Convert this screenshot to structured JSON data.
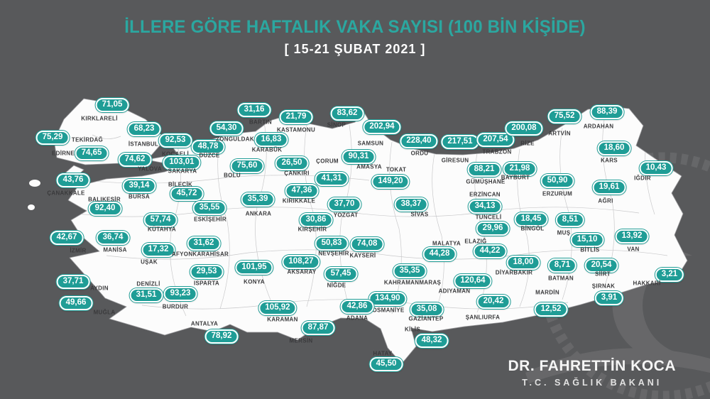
{
  "title": "İLLERE GÖRE HAFTALIK VAKA SAYISI (100 BİN KİŞİDE)",
  "subtitle": "[ 15-21 ŞUBAT 2021 ]",
  "signature": {
    "name": "DR. FAHRETTİN KOCA",
    "title": "T.C. SAĞLIK BAKANI"
  },
  "colors": {
    "background": "#58595b",
    "land": "#fcfcfc",
    "badge_fill": "#1f9d96",
    "badge_border": "#ffffff",
    "title_text": "#2ba7a0",
    "subtitle_text": "#ffffff",
    "province_text": "#3a3a3c"
  },
  "icons": [
    "crescent-icon",
    "star-icon",
    "rope-ring-icon"
  ],
  "chart_data": {
    "type": "map",
    "title": "İLLERE GÖRE HAFTALIK VAKA SAYISI (100 BİN KİŞİDE)",
    "subtitle": "[ 15-21 ŞUBAT 2021 ]",
    "provinces": [
      {
        "name": "KIRKLARELİ",
        "value": "71,05",
        "bx": 158,
        "by": 148,
        "nx": 140,
        "ny": 167
      },
      {
        "name": "EDİRNE",
        "value": "75,29",
        "bx": 74,
        "by": 194,
        "nx": 89,
        "ny": 216
      },
      {
        "name": "TEKİRDAĞ",
        "value": "74,65",
        "bx": 129,
        "by": 216,
        "nx": 123,
        "ny": 197
      },
      {
        "name": "İSTANBUL",
        "value": "68,23",
        "bx": 203,
        "by": 182,
        "nx": 202,
        "ny": 203
      },
      {
        "name": "KOCAELİ",
        "value": "92,53",
        "bx": 247,
        "by": 198,
        "nx": 247,
        "ny": 217
      },
      {
        "name": "YALOVA",
        "value": "74,62",
        "bx": 190,
        "by": 225,
        "nx": 211,
        "ny": 238
      },
      {
        "name": "SAKARYA",
        "value": "103,01",
        "bx": 256,
        "by": 229,
        "nx": 257,
        "ny": 241
      },
      {
        "name": "DÜZCE",
        "value": "48,78",
        "bx": 293,
        "by": 207,
        "nx": 295,
        "ny": 219
      },
      {
        "name": "ZONGULDAK",
        "value": "54,30",
        "bx": 319,
        "by": 181,
        "nx": 331,
        "ny": 196
      },
      {
        "name": "BARTIN",
        "value": "31,16",
        "bx": 358,
        "by": 155,
        "nx": 367,
        "ny": 172
      },
      {
        "name": "KASTAMONU",
        "value": "21,79",
        "bx": 417,
        "by": 165,
        "nx": 417,
        "ny": 183
      },
      {
        "name": "SİNOP",
        "value": "83,62",
        "bx": 489,
        "by": 160,
        "nx": 474,
        "ny": 176
      },
      {
        "name": "KARABÜK",
        "value": "16,83",
        "bx": 382,
        "by": 197,
        "nx": 376,
        "ny": 211
      },
      {
        "name": "BOLU",
        "value": "75,60",
        "bx": 348,
        "by": 234,
        "nx": 327,
        "ny": 247
      },
      {
        "name": "ÇANKIRI",
        "value": "26,50",
        "bx": 411,
        "by": 230,
        "nx": 418,
        "ny": 244
      },
      {
        "name": "ÇORUM",
        "value": "41,31",
        "bx": 467,
        "by": 252,
        "nx": 461,
        "ny": 227
      },
      {
        "name": "SAMSUN",
        "value": "202,94",
        "bx": 538,
        "by": 179,
        "nx": 522,
        "ny": 202
      },
      {
        "name": "AMASYA",
        "value": "90,31",
        "bx": 505,
        "by": 221,
        "nx": 520,
        "ny": 235
      },
      {
        "name": "TOKAT",
        "value": "149,20",
        "bx": 550,
        "by": 256,
        "nx": 558,
        "ny": 239
      },
      {
        "name": "ORDU",
        "value": "228,40",
        "bx": 590,
        "by": 199,
        "nx": 591,
        "ny": 216
      },
      {
        "name": "GİRESUN",
        "value": "217,51",
        "bx": 648,
        "by": 200,
        "nx": 641,
        "ny": 226
      },
      {
        "name": "TRABZON",
        "value": "207,54",
        "bx": 698,
        "by": 197,
        "nx": 700,
        "ny": 214
      },
      {
        "name": "RİZE",
        "value": "200,08",
        "bx": 738,
        "by": 181,
        "nx": 743,
        "ny": 202
      },
      {
        "name": "ARTVİN",
        "value": "75,52",
        "bx": 795,
        "by": 164,
        "nx": 788,
        "ny": 188
      },
      {
        "name": "ARDAHAN",
        "value": "88,39",
        "bx": 855,
        "by": 158,
        "nx": 843,
        "ny": 178
      },
      {
        "name": "KARS",
        "value": "18,60",
        "bx": 865,
        "by": 209,
        "nx": 858,
        "ny": 226
      },
      {
        "name": "IĞDIR",
        "value": "10,43",
        "bx": 924,
        "by": 237,
        "nx": 905,
        "ny": 251
      },
      {
        "name": "AĞRI",
        "value": "19,61",
        "bx": 858,
        "by": 264,
        "nx": 853,
        "ny": 283
      },
      {
        "name": "ERZURUM",
        "value": "50,90",
        "bx": 785,
        "by": 255,
        "nx": 785,
        "ny": 273
      },
      {
        "name": "BAYBURT",
        "value": "21,98",
        "bx": 732,
        "by": 238,
        "nx": 726,
        "ny": 250
      },
      {
        "name": "GÜMÜŞHANE",
        "value": "88,21",
        "bx": 682,
        "by": 239,
        "nx": 684,
        "ny": 256
      },
      {
        "name": "ERZİNCAN",
        "value": "34,13",
        "bx": 683,
        "by": 291,
        "nx": 683,
        "ny": 274
      },
      {
        "name": "TUNCELİ",
        "value": "29,96",
        "bx": 694,
        "by": 322,
        "nx": 688,
        "ny": 306
      },
      {
        "name": "BİNGÖL",
        "value": "18,45",
        "bx": 748,
        "by": 309,
        "nx": 750,
        "ny": 322
      },
      {
        "name": "MUŞ",
        "value": "8,51",
        "bx": 803,
        "by": 310,
        "nx": 794,
        "ny": 328
      },
      {
        "name": "BİTLİS",
        "value": "15,10",
        "bx": 827,
        "by": 338,
        "nx": 831,
        "ny": 352
      },
      {
        "name": "VAN",
        "value": "13,92",
        "bx": 890,
        "by": 333,
        "nx": 892,
        "ny": 351
      },
      {
        "name": "HAKKARİ",
        "value": "3,21",
        "bx": 943,
        "by": 387,
        "nx": 911,
        "ny": 399
      },
      {
        "name": "ŞIRNAK",
        "value": "3,91",
        "bx": 858,
        "by": 420,
        "nx": 850,
        "ny": 403
      },
      {
        "name": "SİİRT",
        "value": "20,54",
        "bx": 847,
        "by": 374,
        "nx": 849,
        "ny": 386
      },
      {
        "name": "BATMAN",
        "value": "8,71",
        "bx": 792,
        "by": 374,
        "nx": 790,
        "ny": 392
      },
      {
        "name": "MARDİN",
        "value": "12,52",
        "bx": 776,
        "by": 436,
        "nx": 771,
        "ny": 412
      },
      {
        "name": "DİYARBAKIR",
        "value": "18,00",
        "bx": 737,
        "by": 370,
        "nx": 724,
        "ny": 384
      },
      {
        "name": "ELAZIĞ",
        "value": "44,22",
        "bx": 690,
        "by": 354,
        "nx": 670,
        "ny": 340
      },
      {
        "name": "MALATYA",
        "value": "44,28",
        "bx": 619,
        "by": 358,
        "nx": 629,
        "ny": 343
      },
      {
        "name": "ADIYAMAN",
        "value": "120,64",
        "bx": 666,
        "by": 396,
        "nx": 640,
        "ny": 410
      },
      {
        "name": "ŞANLIURFA",
        "value": "20,42",
        "bx": 695,
        "by": 425,
        "nx": 680,
        "ny": 447
      },
      {
        "name": "GAZİANTEP",
        "value": "35,08",
        "bx": 601,
        "by": 436,
        "nx": 600,
        "ny": 449
      },
      {
        "name": "KİLİS",
        "value": "48,32",
        "bx": 608,
        "by": 480,
        "nx": 581,
        "ny": 464
      },
      {
        "name": "OSMANİYE",
        "value": "134,90",
        "bx": 546,
        "by": 421,
        "nx": 547,
        "ny": 437
      },
      {
        "name": "HATAY",
        "value": "45,50",
        "bx": 544,
        "by": 513,
        "nx": 539,
        "ny": 498
      },
      {
        "name": "KAHRAMANMARAŞ",
        "value": "35,35",
        "bx": 577,
        "by": 382,
        "nx": 581,
        "ny": 398
      },
      {
        "name": "ADANA",
        "value": "42,86",
        "bx": 503,
        "by": 432,
        "nx": 503,
        "ny": 448
      },
      {
        "name": "MERSİN",
        "value": "87,87",
        "bx": 448,
        "by": 462,
        "nx": 424,
        "ny": 480
      },
      {
        "name": "NİĞDE",
        "value": "57,45",
        "bx": 480,
        "by": 386,
        "nx": 474,
        "ny": 402
      },
      {
        "name": "AKSARAY",
        "value": "108,27",
        "bx": 424,
        "by": 369,
        "nx": 425,
        "ny": 383
      },
      {
        "name": "NEVŞEHİR",
        "value": "50,83",
        "bx": 467,
        "by": 343,
        "nx": 470,
        "ny": 357
      },
      {
        "name": "KAYSERİ",
        "value": "74,08",
        "bx": 517,
        "by": 344,
        "nx": 511,
        "ny": 360
      },
      {
        "name": "KIRŞEHİR",
        "value": "30,86",
        "bx": 445,
        "by": 310,
        "nx": 440,
        "ny": 323
      },
      {
        "name": "YOZGAT",
        "value": "37,70",
        "bx": 485,
        "by": 288,
        "nx": 487,
        "ny": 303
      },
      {
        "name": "KIRIKKALE",
        "value": "47,36",
        "bx": 425,
        "by": 269,
        "nx": 421,
        "ny": 283
      },
      {
        "name": "ANKARA",
        "value": "35,39",
        "bx": 363,
        "by": 281,
        "nx": 364,
        "ny": 301
      },
      {
        "name": "ÇANAKKALE",
        "value": "43,76",
        "bx": 103,
        "by": 254,
        "nx": 93,
        "ny": 272
      },
      {
        "name": "BALIKESİR",
        "value": "92,40",
        "bx": 148,
        "by": 294,
        "nx": 147,
        "ny": 281
      },
      {
        "name": "BURSA",
        "value": "39,14",
        "bx": 196,
        "by": 262,
        "nx": 196,
        "ny": 277
      },
      {
        "name": "BİLECİK",
        "value": "45,72",
        "bx": 263,
        "by": 273,
        "nx": 254,
        "ny": 260
      },
      {
        "name": "ESKİŞEHİR",
        "value": "35,55",
        "bx": 295,
        "by": 293,
        "nx": 296,
        "ny": 309
      },
      {
        "name": "KÜTAHYA",
        "value": "57,74",
        "bx": 226,
        "by": 310,
        "nx": 228,
        "ny": 323
      },
      {
        "name": "UŞAK",
        "value": "17,32",
        "bx": 223,
        "by": 352,
        "nx": 210,
        "ny": 369
      },
      {
        "name": "AFYONKARAHİSAR",
        "value": "31,62",
        "bx": 287,
        "by": 343,
        "nx": 282,
        "ny": 358
      },
      {
        "name": "MANİSA",
        "value": "36,74",
        "bx": 159,
        "by": 335,
        "nx": 162,
        "ny": 352
      },
      {
        "name": "İZMİR",
        "value": "42,67",
        "bx": 94,
        "by": 335,
        "nx": 110,
        "ny": 353
      },
      {
        "name": "AYDIN",
        "value": "37,71",
        "bx": 103,
        "by": 397,
        "nx": 140,
        "ny": 406
      },
      {
        "name": "MUĞLA",
        "value": "49,66",
        "bx": 107,
        "by": 427,
        "nx": 147,
        "ny": 440
      },
      {
        "name": "DENİZLİ",
        "value": "31,51",
        "bx": 206,
        "by": 416,
        "nx": 209,
        "ny": 400
      },
      {
        "name": "BURDUR",
        "value": "93,23",
        "bx": 254,
        "by": 414,
        "nx": 247,
        "ny": 432
      },
      {
        "name": "ISPARTA",
        "value": "29,53",
        "bx": 291,
        "by": 383,
        "nx": 291,
        "ny": 399
      },
      {
        "name": "ANTALYA",
        "value": "78,92",
        "bx": 312,
        "by": 474,
        "nx": 288,
        "ny": 456
      },
      {
        "name": "KONYA",
        "value": "101,95",
        "bx": 358,
        "by": 377,
        "nx": 358,
        "ny": 397
      },
      {
        "name": "KARAMAN",
        "value": "105,92",
        "bx": 391,
        "by": 434,
        "nx": 398,
        "ny": 450
      },
      {
        "name": "SİVAS",
        "value": "38,37",
        "bx": 579,
        "by": 288,
        "nx": 591,
        "ny": 302
      }
    ]
  }
}
